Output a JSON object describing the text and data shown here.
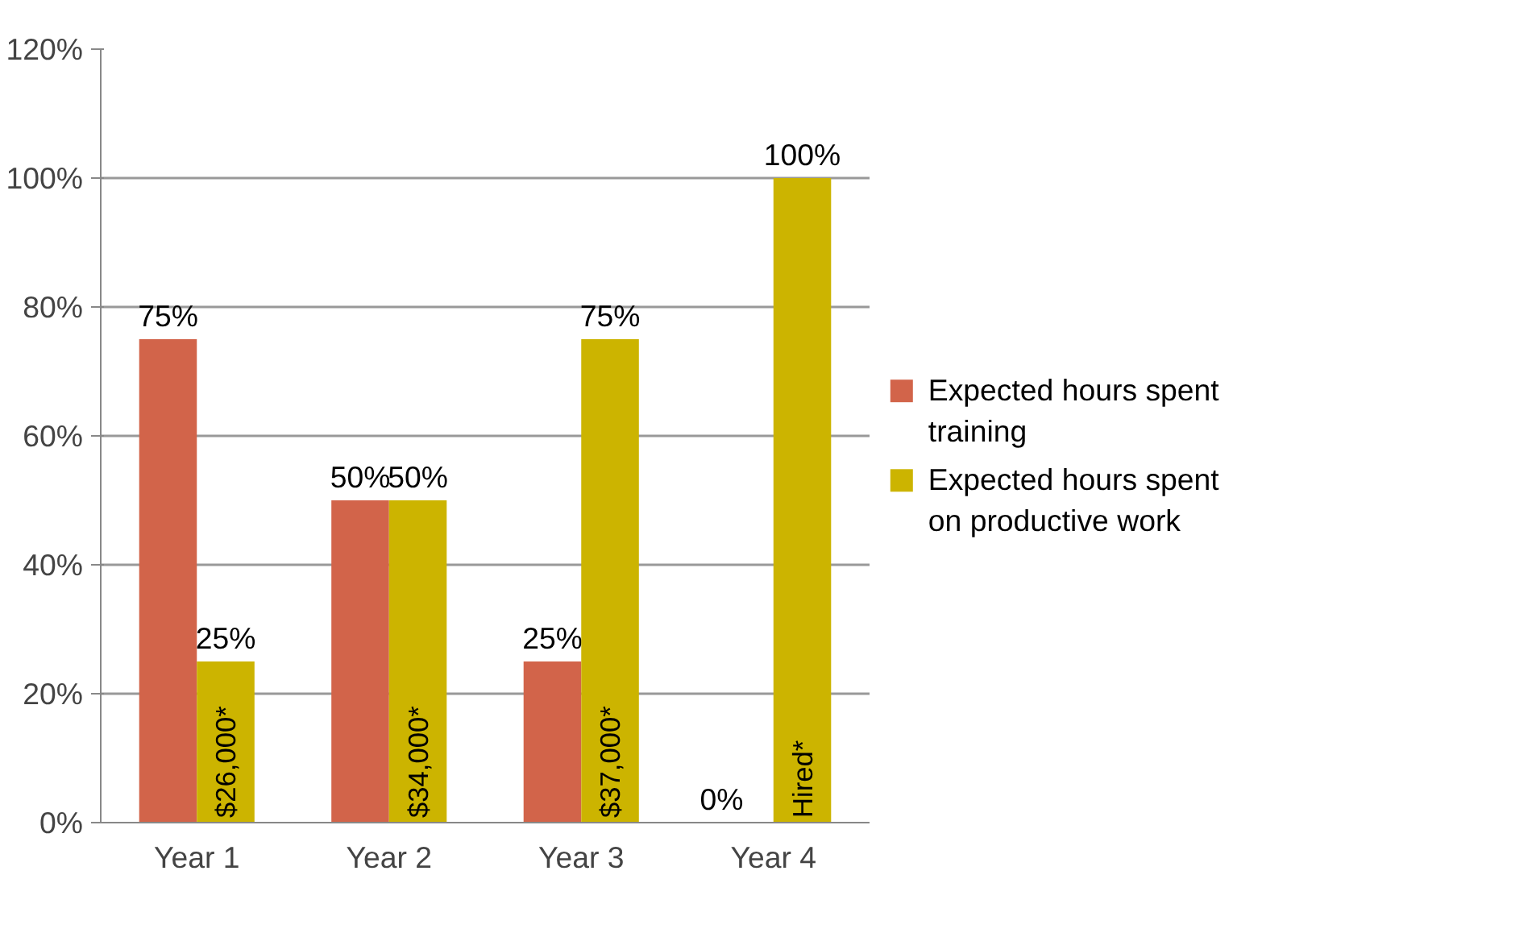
{
  "chart_data": {
    "type": "bar",
    "categories": [
      "Year 1",
      "Year 2",
      "Year 3",
      "Year 4"
    ],
    "series": [
      {
        "name": "Expected hours spent training",
        "color": "#d2644a",
        "values": [
          75,
          50,
          25,
          0
        ]
      },
      {
        "name": "Expected hours spent on productive work",
        "color": "#ccb400",
        "values": [
          25,
          50,
          75,
          100
        ]
      }
    ],
    "ylim": [
      0,
      120
    ],
    "yticks": [
      {
        "value": 0,
        "label": "0%"
      },
      {
        "value": 20,
        "label": "20%"
      },
      {
        "value": 40,
        "label": "40%"
      },
      {
        "value": 60,
        "label": "60%"
      },
      {
        "value": 80,
        "label": "80%"
      },
      {
        "value": 100,
        "label": "100%"
      },
      {
        "value": 120,
        "label": "120%"
      }
    ],
    "value_labels": [
      [
        "75%",
        "50%",
        "25%",
        "0%"
      ],
      [
        "25%",
        "50%",
        "75%",
        "100%"
      ]
    ],
    "annotations": [
      {
        "text": "$26,000*",
        "x": "Year 1",
        "y": 0
      },
      {
        "text": "$34,000*",
        "x": "Year 2",
        "y": 0
      },
      {
        "text": "$37,000*",
        "x": "Year 3",
        "y": 0
      },
      {
        "text": "Hired*",
        "x": "Year 4",
        "y": 0
      }
    ],
    "grid": "y",
    "legend": "right"
  }
}
